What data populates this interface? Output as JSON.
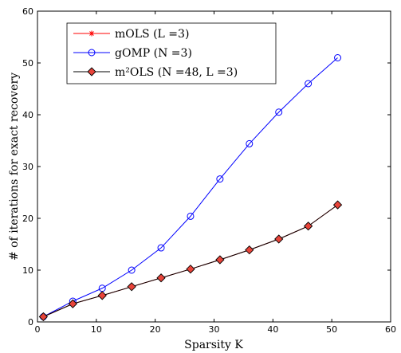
{
  "chart_data": {
    "type": "line",
    "xlabel": "Sparsity K",
    "ylabel": "# of iterations for exact recovery",
    "xlim": [
      0,
      60
    ],
    "ylim": [
      0,
      60
    ],
    "xticks": [
      0,
      10,
      20,
      30,
      40,
      50,
      60
    ],
    "yticks": [
      0,
      10,
      20,
      30,
      40,
      50,
      60
    ],
    "grid": false,
    "legend_position": "top-left",
    "x": [
      1,
      6,
      11,
      16,
      21,
      26,
      31,
      36,
      41,
      46,
      51
    ],
    "series": [
      {
        "name": "mOLS (L =3)",
        "color": "#ff0000",
        "marker": "asterisk",
        "values": [
          1,
          3.5,
          5.1,
          6.8,
          8.5,
          10.2,
          12.0,
          13.9,
          16.0,
          18.5,
          22.6
        ]
      },
      {
        "name": "gOMP (N =3)",
        "color": "#0000ff",
        "marker": "circle",
        "values": [
          1,
          4,
          6.5,
          10,
          14.3,
          20.4,
          27.6,
          34.4,
          40.5,
          46,
          51
        ]
      },
      {
        "name": "m²OLS (N =48, L =3)",
        "color": "#000000",
        "marker": "diamond",
        "values": [
          1,
          3.5,
          5.1,
          6.8,
          8.5,
          10.2,
          12.0,
          13.9,
          16.0,
          18.5,
          22.6
        ]
      }
    ]
  }
}
